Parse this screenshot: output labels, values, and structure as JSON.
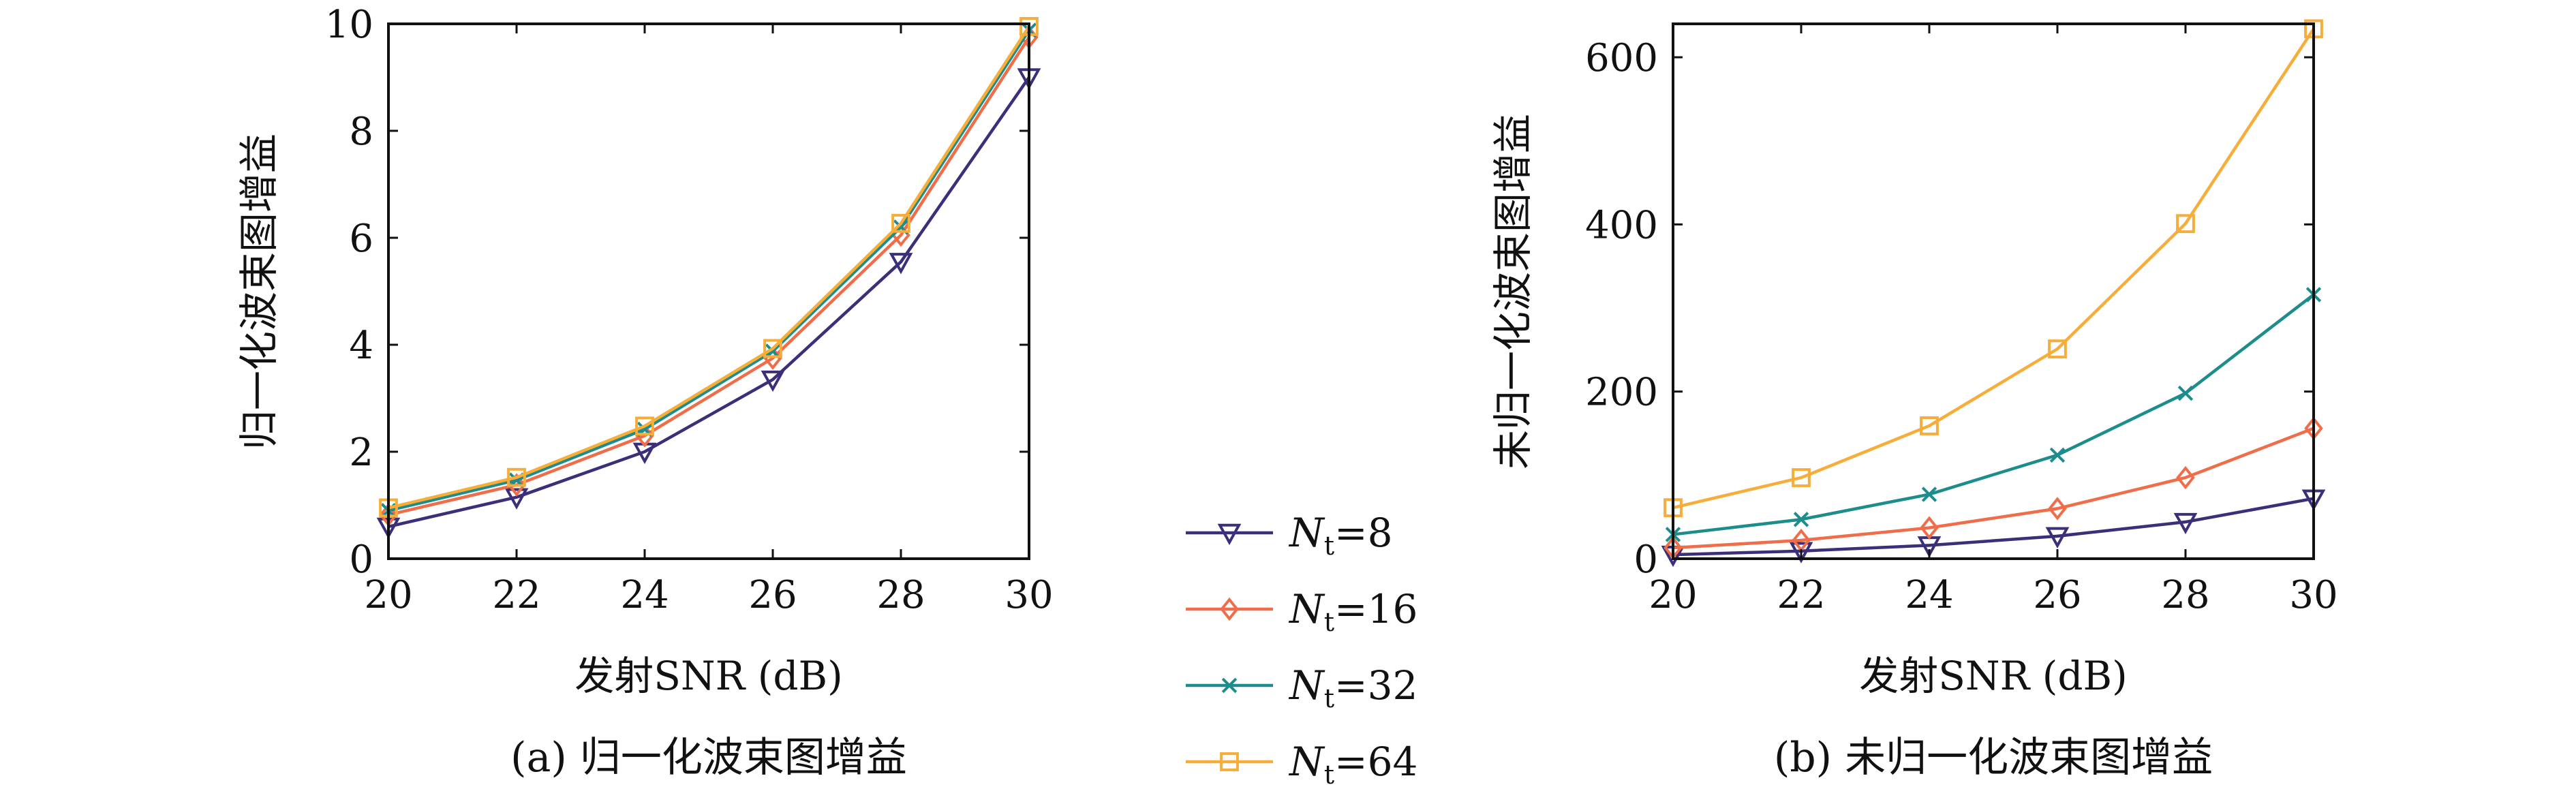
{
  "chart_data": [
    {
      "type": "line",
      "panel": "a",
      "caption": "(a) 归一化波束图增益",
      "xlabel": "发射SNR (dB)",
      "ylabel": "归一化波束图增益",
      "x": [
        20,
        22,
        24,
        26,
        28,
        30
      ],
      "xlim": [
        20,
        30
      ],
      "ylim": [
        0,
        10
      ],
      "xticks": [
        20,
        22,
        24,
        26,
        28,
        30
      ],
      "yticks": [
        0,
        2,
        4,
        6,
        8,
        10
      ],
      "series": [
        {
          "name": "N_t=8",
          "values": [
            0.6,
            1.15,
            2.0,
            3.35,
            5.55,
            9.0
          ]
        },
        {
          "name": "N_t=16",
          "values": [
            0.82,
            1.38,
            2.3,
            3.75,
            6.05,
            9.75
          ]
        },
        {
          "name": "N_t=32",
          "values": [
            0.9,
            1.47,
            2.42,
            3.88,
            6.2,
            9.88
          ]
        },
        {
          "name": "N_t=64",
          "values": [
            0.95,
            1.52,
            2.48,
            3.93,
            6.27,
            9.95
          ]
        }
      ]
    },
    {
      "type": "line",
      "panel": "b",
      "caption": "(b) 未归一化波束图增益",
      "xlabel": "发射SNR (dB)",
      "ylabel": "未归一化波束图增益",
      "x": [
        20,
        22,
        24,
        26,
        28,
        30
      ],
      "xlim": [
        20,
        30
      ],
      "ylim": [
        0,
        640
      ],
      "xticks": [
        20,
        22,
        24,
        26,
        28,
        30
      ],
      "yticks": [
        0,
        200,
        400,
        600
      ],
      "series": [
        {
          "name": "N_t=8",
          "values": [
            4.8,
            9.2,
            16,
            27,
            44,
            72
          ]
        },
        {
          "name": "N_t=16",
          "values": [
            13,
            22,
            37,
            60,
            97,
            156
          ]
        },
        {
          "name": "N_t=32",
          "values": [
            29,
            47,
            77,
            124,
            198,
            316
          ]
        },
        {
          "name": "N_t=64",
          "values": [
            61,
            97,
            159,
            251,
            401,
            634
          ]
        }
      ]
    }
  ],
  "legend": {
    "entries": [
      {
        "symbol": "N",
        "subscript": "t",
        "value": "=8",
        "color": "#3b2f7a",
        "marker": "triangle-down"
      },
      {
        "symbol": "N",
        "subscript": "t",
        "value": "=16",
        "color": "#f06d4a",
        "marker": "diamond"
      },
      {
        "symbol": "N",
        "subscript": "t",
        "value": "=32",
        "color": "#1d8c8c",
        "marker": "x"
      },
      {
        "symbol": "N",
        "subscript": "t",
        "value": "=64",
        "color": "#f7ad3a",
        "marker": "square"
      }
    ]
  }
}
